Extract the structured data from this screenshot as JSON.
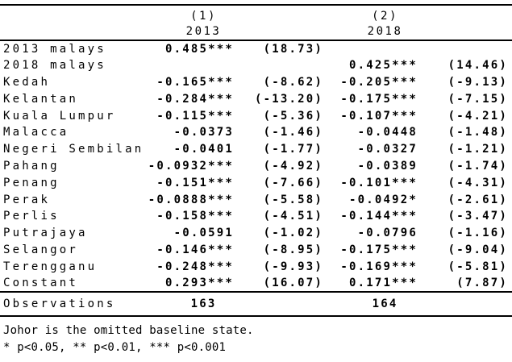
{
  "table": {
    "header": {
      "model1": "(1)",
      "year1": "2013",
      "model2": "(2)",
      "year2": "2018"
    },
    "rows": [
      {
        "label": "2013 malays",
        "coef1": "0.485***",
        "t1": "(18.73)",
        "coef2": "",
        "t2": ""
      },
      {
        "label": "2018 malays",
        "coef1": "",
        "t1": "",
        "coef2": "0.425***",
        "t2": "(14.46)"
      },
      {
        "label": "Kedah",
        "coef1": "-0.165***",
        "t1": "(-8.62)",
        "coef2": "-0.205***",
        "t2": "(-9.13)"
      },
      {
        "label": "Kelantan",
        "coef1": "-0.284***",
        "t1": "(-13.20)",
        "coef2": "-0.175***",
        "t2": "(-7.15)"
      },
      {
        "label": "Kuala Lumpur",
        "coef1": "-0.115***",
        "t1": "(-5.36)",
        "coef2": "-0.107***",
        "t2": "(-4.21)"
      },
      {
        "label": "Malacca",
        "coef1": "-0.0373",
        "t1": "(-1.46)",
        "coef2": "-0.0448",
        "t2": "(-1.48)"
      },
      {
        "label": "Negeri Sembilan",
        "coef1": "-0.0401",
        "t1": "(-1.77)",
        "coef2": "-0.0327",
        "t2": "(-1.21)"
      },
      {
        "label": "Pahang",
        "coef1": "-0.0932***",
        "t1": "(-4.92)",
        "coef2": "-0.0389",
        "t2": "(-1.74)"
      },
      {
        "label": "Penang",
        "coef1": "-0.151***",
        "t1": "(-7.66)",
        "coef2": "-0.101***",
        "t2": "(-4.31)"
      },
      {
        "label": "Perak",
        "coef1": "-0.0888***",
        "t1": "(-5.58)",
        "coef2": "-0.0492*",
        "t2": "(-2.61)"
      },
      {
        "label": "Perlis",
        "coef1": "-0.158***",
        "t1": "(-4.51)",
        "coef2": "-0.144***",
        "t2": "(-3.47)"
      },
      {
        "label": "Putrajaya",
        "coef1": "-0.0591",
        "t1": "(-1.02)",
        "coef2": "-0.0796",
        "t2": "(-1.16)"
      },
      {
        "label": "Selangor",
        "coef1": "-0.146***",
        "t1": "(-8.95)",
        "coef2": "-0.175***",
        "t2": "(-9.04)"
      },
      {
        "label": "Terengganu",
        "coef1": "-0.248***",
        "t1": "(-9.93)",
        "coef2": "-0.169***",
        "t2": "(-5.81)"
      },
      {
        "label": "Constant",
        "coef1": "0.293***",
        "t1": "(16.07)",
        "coef2": "0.171***",
        "t2": "(7.87)"
      }
    ],
    "observations": {
      "label": "Observations",
      "col1": "163",
      "col2": "164"
    }
  },
  "notes": {
    "line1": "Johor is the omitted baseline state.",
    "line2": "* p<0.05, ** p<0.01, *** p<0.001"
  }
}
